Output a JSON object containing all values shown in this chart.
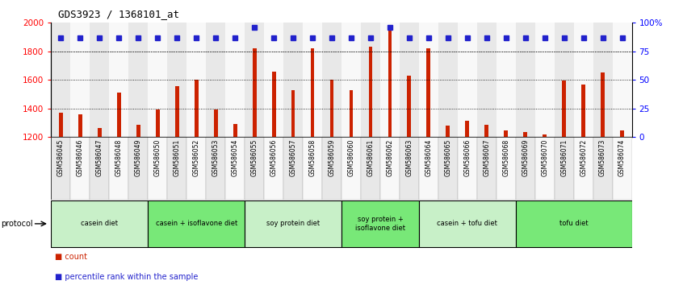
{
  "title": "GDS3923 / 1368101_at",
  "categories": [
    "GSM586045",
    "GSM586046",
    "GSM586047",
    "GSM586048",
    "GSM586049",
    "GSM586050",
    "GSM586051",
    "GSM586052",
    "GSM586053",
    "GSM586054",
    "GSM586055",
    "GSM586056",
    "GSM586057",
    "GSM586058",
    "GSM586059",
    "GSM586060",
    "GSM586061",
    "GSM586062",
    "GSM586063",
    "GSM586064",
    "GSM586065",
    "GSM586066",
    "GSM586067",
    "GSM586068",
    "GSM586069",
    "GSM586070",
    "GSM586071",
    "GSM586072",
    "GSM586073",
    "GSM586074"
  ],
  "bar_values": [
    1370,
    1360,
    1260,
    1510,
    1285,
    1390,
    1555,
    1600,
    1390,
    1290,
    1820,
    1655,
    1530,
    1820,
    1600,
    1530,
    1830,
    1960,
    1630,
    1820,
    1280,
    1310,
    1285,
    1245,
    1235,
    1215,
    1595,
    1565,
    1650,
    1245
  ],
  "percentile_values": [
    87,
    87,
    87,
    87,
    87,
    87,
    87,
    87,
    87,
    87,
    96,
    87,
    87,
    87,
    87,
    87,
    87,
    96,
    87,
    87,
    87,
    87,
    87,
    87,
    87,
    87,
    87,
    87,
    87,
    87
  ],
  "groups": [
    {
      "label": "casein diet",
      "start": 0,
      "end": 4,
      "color": "#c8f0c8"
    },
    {
      "label": "casein + isoflavone diet",
      "start": 5,
      "end": 9,
      "color": "#78e878"
    },
    {
      "label": "soy protein diet",
      "start": 10,
      "end": 14,
      "color": "#c8f0c8"
    },
    {
      "label": "soy protein +\nisoflavone diet",
      "start": 15,
      "end": 18,
      "color": "#78e878"
    },
    {
      "label": "casein + tofu diet",
      "start": 19,
      "end": 23,
      "color": "#c8f0c8"
    },
    {
      "label": "tofu diet",
      "start": 24,
      "end": 29,
      "color": "#78e878"
    }
  ],
  "bar_color": "#cc2200",
  "dot_color": "#2222cc",
  "ylim_left": [
    1200,
    2000
  ],
  "ylim_right": [
    0,
    100
  ],
  "yticks_left": [
    1200,
    1400,
    1600,
    1800,
    2000
  ],
  "yticks_right": [
    0,
    25,
    50,
    75,
    100
  ],
  "grid_values": [
    1400,
    1600,
    1800
  ],
  "bg_color": "#ffffff",
  "plot_bg_color": "#ffffff",
  "col_bg_even": "#e8e8e8",
  "col_bg_odd": "#f8f8f8"
}
